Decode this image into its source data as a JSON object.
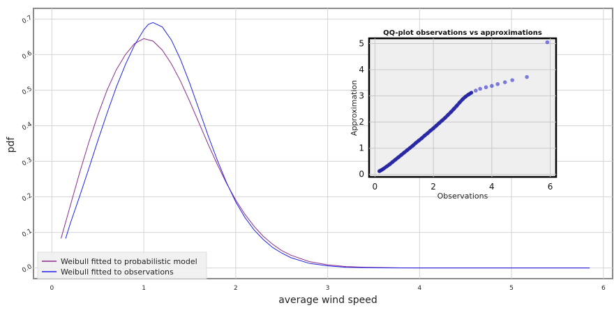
{
  "chart_data": [
    {
      "type": "line",
      "title": "",
      "xlabel": "average wind speed",
      "ylabel": "pdf",
      "xlim": [
        -0.2,
        6.1
      ],
      "ylim": [
        -0.03,
        0.73
      ],
      "xticks": [
        0,
        1,
        2,
        3,
        4,
        5,
        6
      ],
      "xtick_labels": [
        "0",
        "1",
        "2",
        "3",
        "4",
        "5",
        "6"
      ],
      "yticks": [
        0.0,
        0.1,
        0.2,
        0.3,
        0.4,
        0.5,
        0.6,
        0.7
      ],
      "ytick_labels": [
        "0.0",
        "0.1",
        "0.2",
        "0.3",
        "0.4",
        "0.5",
        "0.6",
        "0.7"
      ],
      "grid": true,
      "legend_position": "bottom-left",
      "series": [
        {
          "name": "Weibull fitted to probabilistic model",
          "color": "#8b2c8b",
          "x": [
            0.1,
            0.2,
            0.3,
            0.4,
            0.5,
            0.6,
            0.7,
            0.8,
            0.9,
            1.0,
            1.1,
            1.2,
            1.3,
            1.4,
            1.5,
            1.6,
            1.7,
            1.8,
            1.9,
            2.0,
            2.1,
            2.2,
            2.3,
            2.4,
            2.5,
            2.6,
            2.8,
            3.0,
            3.2,
            3.4,
            3.6,
            3.8,
            4.0,
            4.5,
            5.0,
            5.5,
            5.85
          ],
          "y": [
            0.083,
            0.175,
            0.266,
            0.352,
            0.43,
            0.5,
            0.557,
            0.6,
            0.631,
            0.645,
            0.638,
            0.613,
            0.574,
            0.525,
            0.468,
            0.408,
            0.348,
            0.291,
            0.238,
            0.191,
            0.151,
            0.117,
            0.089,
            0.067,
            0.049,
            0.036,
            0.018,
            0.009,
            0.004,
            0.002,
            0.001,
            0.0004,
            0.0002,
            0.0,
            0.0,
            0.0,
            0.0
          ]
        },
        {
          "name": "Weibull fitted to observations",
          "color": "#1f1fe6",
          "x": [
            0.15,
            0.2,
            0.3,
            0.4,
            0.5,
            0.6,
            0.7,
            0.8,
            0.9,
            1.0,
            1.05,
            1.1,
            1.2,
            1.3,
            1.4,
            1.5,
            1.6,
            1.7,
            1.8,
            1.9,
            2.0,
            2.1,
            2.2,
            2.3,
            2.4,
            2.5,
            2.6,
            2.8,
            3.0,
            3.2,
            3.4,
            3.6,
            3.8,
            4.0,
            4.5,
            5.0,
            5.5,
            5.85
          ],
          "y": [
            0.083,
            0.125,
            0.2,
            0.278,
            0.358,
            0.435,
            0.508,
            0.572,
            0.627,
            0.67,
            0.685,
            0.69,
            0.678,
            0.641,
            0.586,
            0.519,
            0.446,
            0.372,
            0.303,
            0.24,
            0.186,
            0.142,
            0.107,
            0.08,
            0.058,
            0.042,
            0.029,
            0.013,
            0.006,
            0.002,
            0.001,
            0.0004,
            0.0001,
            0.0,
            0.0,
            0.0,
            0.0,
            0.0
          ]
        }
      ]
    },
    {
      "type": "scatter",
      "title": "QQ-plot observations vs approximations",
      "xlabel": "Observations",
      "ylabel": "Approximation",
      "xlim": [
        -0.2,
        6.2
      ],
      "ylim": [
        -0.1,
        5.2
      ],
      "xticks": [
        0,
        2,
        4,
        6
      ],
      "xtick_labels": [
        "0",
        "2",
        "4",
        "6"
      ],
      "yticks": [
        0,
        1,
        2,
        3,
        4,
        5
      ],
      "ytick_labels": [
        "0",
        "1",
        "2",
        "3",
        "4",
        "5"
      ],
      "grid": true,
      "point_color": "#2b2bcf",
      "background": "#efefef",
      "series": [
        {
          "x": [
            0.15,
            0.2,
            0.25,
            0.3,
            0.4,
            0.5,
            0.6,
            0.7,
            0.8,
            0.9,
            1.0,
            1.1,
            1.2,
            1.3,
            1.4,
            1.5,
            1.6,
            1.7,
            1.8,
            1.9,
            2.0,
            2.1,
            2.2,
            2.3,
            2.4,
            2.5,
            2.6,
            2.7,
            2.8,
            2.9,
            3.0,
            3.1,
            3.2,
            3.3,
            3.45,
            3.6,
            3.8,
            4.0,
            4.2,
            4.45,
            4.7,
            5.2,
            5.9
          ],
          "y": [
            0.12,
            0.15,
            0.18,
            0.22,
            0.3,
            0.38,
            0.47,
            0.56,
            0.65,
            0.74,
            0.83,
            0.92,
            1.01,
            1.1,
            1.2,
            1.29,
            1.38,
            1.48,
            1.57,
            1.67,
            1.76,
            1.86,
            1.96,
            2.06,
            2.16,
            2.27,
            2.38,
            2.5,
            2.62,
            2.75,
            2.87,
            2.97,
            3.05,
            3.12,
            3.2,
            3.27,
            3.33,
            3.38,
            3.45,
            3.52,
            3.6,
            3.72,
            5.05
          ]
        }
      ]
    }
  ]
}
